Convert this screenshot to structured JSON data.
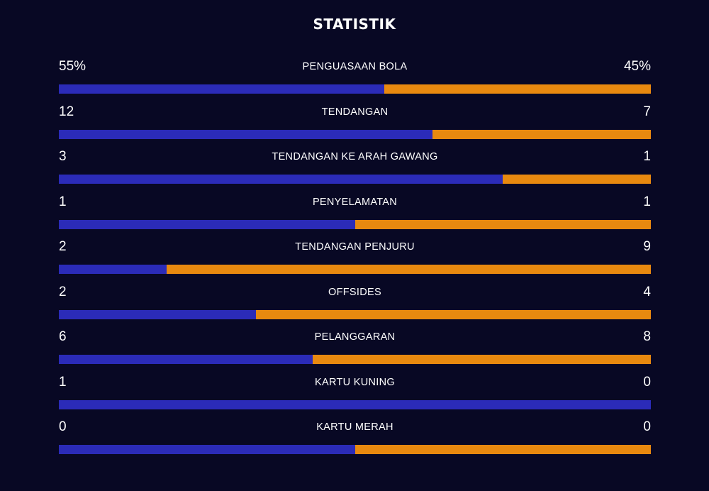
{
  "title": "STATISTIK",
  "colors": {
    "background": "#080824",
    "home_bar": "#2b2bb8",
    "away_bar": "#e8890f",
    "text": "#ffffff"
  },
  "stats": [
    {
      "label": "PENGUASAAN BOLA",
      "left": "55%",
      "right": "45%",
      "home_value": 55,
      "away_value": 45
    },
    {
      "label": "TENDANGAN",
      "left": "12",
      "right": "7",
      "home_value": 12,
      "away_value": 7
    },
    {
      "label": "TENDANGAN KE ARAH GAWANG",
      "left": "3",
      "right": "1",
      "home_value": 3,
      "away_value": 1
    },
    {
      "label": "PENYELAMATAN",
      "left": "1",
      "right": "1",
      "home_value": 1,
      "away_value": 1
    },
    {
      "label": "TENDANGAN PENJURU",
      "left": "2",
      "right": "9",
      "home_value": 2,
      "away_value": 9
    },
    {
      "label": "OFFSIDES",
      "left": "2",
      "right": "4",
      "home_value": 2,
      "away_value": 4
    },
    {
      "label": "PELANGGARAN",
      "left": "6",
      "right": "8",
      "home_value": 6,
      "away_value": 8
    },
    {
      "label": "KARTU KUNING",
      "left": "1",
      "right": "0",
      "home_value": 1,
      "away_value": 0
    },
    {
      "label": "KARTU MERAH",
      "left": "0",
      "right": "0",
      "home_value": 0,
      "away_value": 0
    }
  ]
}
